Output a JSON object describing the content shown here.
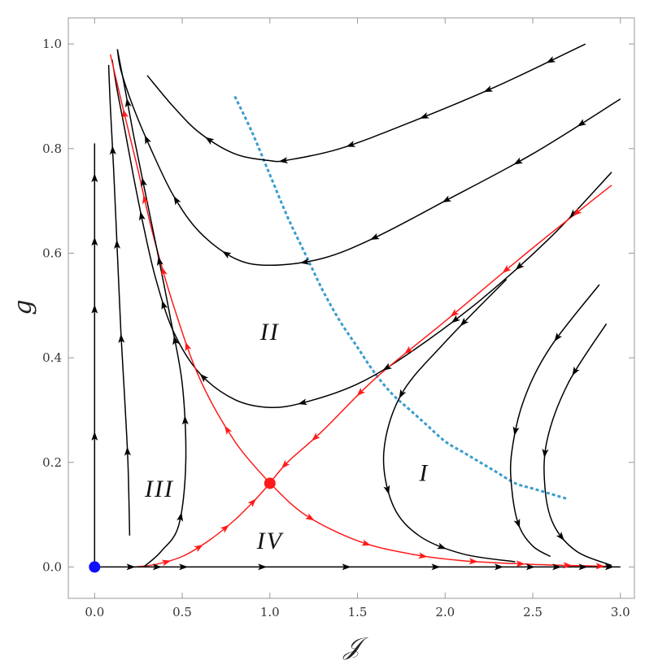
{
  "chart_data": {
    "type": "phase-portrait",
    "xlabel": "𝒥",
    "ylabel": "g",
    "xlim": [
      -0.15,
      3.08
    ],
    "ylim": [
      -0.06,
      1.05
    ],
    "x_ticks": [
      "0.0",
      "0.5",
      "1.0",
      "1.5",
      "2.0",
      "2.5",
      "3.0"
    ],
    "x_tick_values": [
      0,
      0.5,
      1,
      1.5,
      2,
      2.5,
      3
    ],
    "y_ticks": [
      "0.0",
      "0.2",
      "0.4",
      "0.6",
      "0.8",
      "1.0"
    ],
    "y_tick_values": [
      0,
      0.2,
      0.4,
      0.6,
      0.8,
      1.0
    ],
    "colors": {
      "flow": "#000000",
      "separatrix": "#ff1a1a",
      "boundary": "#3b9ccc",
      "fixed_point_stable": "#ff1a1a",
      "fixed_point_origin": "#1010ff"
    },
    "fixed_points": [
      {
        "id": "origin",
        "x": 0,
        "y": 0,
        "color": "#1010ff"
      },
      {
        "id": "saddle",
        "x": 1.0,
        "y": 0.16,
        "color": "#ff1a1a"
      }
    ],
    "region_labels": [
      {
        "text": "I",
        "x": 1.88,
        "y": 0.18
      },
      {
        "text": "II",
        "x": 1.0,
        "y": 0.45
      },
      {
        "text": "III",
        "x": 0.37,
        "y": 0.15
      },
      {
        "text": "IV",
        "x": 1.0,
        "y": 0.05
      }
    ],
    "boundary_curve": {
      "style": "dashed",
      "points": [
        [
          0.8,
          0.9
        ],
        [
          0.9,
          0.83
        ],
        [
          1.0,
          0.75
        ],
        [
          1.1,
          0.67
        ],
        [
          1.2,
          0.6
        ],
        [
          1.3,
          0.53
        ],
        [
          1.4,
          0.47
        ],
        [
          1.5,
          0.42
        ],
        [
          1.6,
          0.37
        ],
        [
          1.7,
          0.33
        ],
        [
          1.8,
          0.3
        ],
        [
          1.9,
          0.27
        ],
        [
          2.0,
          0.24
        ],
        [
          2.1,
          0.22
        ],
        [
          2.2,
          0.2
        ],
        [
          2.3,
          0.18
        ],
        [
          2.4,
          0.16
        ],
        [
          2.5,
          0.15
        ],
        [
          2.6,
          0.14
        ],
        [
          2.7,
          0.13
        ]
      ]
    },
    "series": [
      {
        "color": "#000000",
        "points": [
          [
            2.8,
            1.0
          ],
          [
            2.3,
            0.92
          ],
          [
            1.8,
            0.85
          ],
          [
            1.4,
            0.8
          ],
          [
            1.1,
            0.778
          ],
          [
            1.0,
            0.777
          ],
          [
            0.8,
            0.79
          ],
          [
            0.6,
            0.83
          ],
          [
            0.45,
            0.88
          ],
          [
            0.3,
            0.94
          ]
        ],
        "arrows": [
          0.08,
          0.22,
          0.36,
          0.52,
          0.66,
          0.82
        ]
      },
      {
        "color": "#000000",
        "points": [
          [
            3.0,
            0.895
          ],
          [
            2.5,
            0.79
          ],
          [
            2.0,
            0.7
          ],
          [
            1.6,
            0.63
          ],
          [
            1.3,
            0.59
          ],
          [
            1.0,
            0.577
          ],
          [
            0.8,
            0.59
          ],
          [
            0.6,
            0.64
          ],
          [
            0.45,
            0.71
          ],
          [
            0.32,
            0.8
          ],
          [
            0.22,
            0.88
          ],
          [
            0.15,
            0.95
          ],
          [
            0.13,
            0.99
          ]
        ],
        "arrows": [
          0.07,
          0.18,
          0.3,
          0.42,
          0.53,
          0.65,
          0.76,
          0.86
        ]
      },
      {
        "color": "#000000",
        "points": [
          [
            2.95,
            0.755
          ],
          [
            2.6,
            0.63
          ],
          [
            2.2,
            0.51
          ],
          [
            1.8,
            0.41
          ],
          [
            1.5,
            0.35
          ],
          [
            1.2,
            0.315
          ],
          [
            1.0,
            0.305
          ],
          [
            0.8,
            0.32
          ],
          [
            0.6,
            0.37
          ],
          [
            0.45,
            0.45
          ],
          [
            0.35,
            0.55
          ],
          [
            0.28,
            0.65
          ],
          [
            0.22,
            0.75
          ],
          [
            0.17,
            0.84
          ],
          [
            0.13,
            0.91
          ],
          [
            0.1,
            0.97
          ]
        ],
        "arrows": [
          0.07,
          0.16,
          0.26,
          0.36,
          0.47,
          0.6,
          0.7,
          0.81
        ]
      },
      {
        "color": "#ff1a1a",
        "points": [
          [
            2.95,
            0.73
          ],
          [
            2.5,
            0.61
          ],
          [
            2.0,
            0.47
          ],
          [
            1.6,
            0.36
          ],
          [
            1.3,
            0.26
          ],
          [
            1.1,
            0.2
          ],
          [
            1.0,
            0.16
          ]
        ],
        "arrows": [
          0.1,
          0.3,
          0.45,
          0.58,
          0.72,
          0.86,
          0.95
        ]
      },
      {
        "color": "#ff1a1a",
        "points": [
          [
            0.23,
            0.0
          ],
          [
            0.35,
            0.005
          ],
          [
            0.5,
            0.02
          ],
          [
            0.65,
            0.05
          ],
          [
            0.8,
            0.09
          ],
          [
            0.92,
            0.13
          ],
          [
            1.0,
            0.16
          ]
        ],
        "arrows": [
          0.2,
          0.42,
          0.62,
          0.85
        ]
      },
      {
        "color": "#ff1a1a",
        "points": [
          [
            1.0,
            0.16
          ],
          [
            0.8,
            0.24
          ],
          [
            0.6,
            0.36
          ],
          [
            0.45,
            0.5
          ],
          [
            0.33,
            0.64
          ],
          [
            0.24,
            0.77
          ],
          [
            0.16,
            0.88
          ],
          [
            0.09,
            0.98
          ]
        ],
        "arrows": [
          0.15,
          0.35,
          0.52,
          0.68,
          0.87
        ]
      },
      {
        "color": "#ff1a1a",
        "points": [
          [
            1.0,
            0.16
          ],
          [
            1.2,
            0.1
          ],
          [
            1.5,
            0.05
          ],
          [
            1.8,
            0.025
          ],
          [
            2.1,
            0.012
          ],
          [
            2.5,
            0.005
          ],
          [
            2.95,
            0.001
          ]
        ],
        "arrows": [
          0.15,
          0.32,
          0.48,
          0.62,
          0.75,
          0.88,
          0.97
        ]
      },
      {
        "color": "#000000",
        "points": [
          [
            0.0,
            0.0
          ],
          [
            0.0,
            0.81
          ]
        ],
        "arrows": [
          0.31,
          0.61,
          0.77,
          0.92
        ]
      },
      {
        "color": "#000000",
        "points": [
          [
            0.0,
            0.0
          ],
          [
            0.5,
            0.0
          ],
          [
            1.0,
            0.0
          ],
          [
            1.5,
            0.0
          ],
          [
            2.0,
            0.0
          ],
          [
            2.5,
            0.0
          ],
          [
            3.0,
            0.0
          ]
        ],
        "arrows": [
          0.07,
          0.12,
          0.17,
          0.32,
          0.48,
          0.65,
          0.77,
          0.83,
          0.88,
          0.93,
          0.98
        ]
      },
      {
        "color": "#000000",
        "points": [
          [
            0.2,
            0.06
          ],
          [
            0.19,
            0.2
          ],
          [
            0.17,
            0.33
          ],
          [
            0.15,
            0.45
          ],
          [
            0.13,
            0.6
          ],
          [
            0.11,
            0.75
          ],
          [
            0.09,
            0.88
          ],
          [
            0.08,
            0.96
          ]
        ],
        "arrows": [
          0.18,
          0.42,
          0.62,
          0.82
        ]
      },
      {
        "color": "#000000",
        "points": [
          [
            0.28,
            0.0
          ],
          [
            0.38,
            0.03
          ],
          [
            0.48,
            0.08
          ],
          [
            0.52,
            0.2
          ],
          [
            0.5,
            0.35
          ],
          [
            0.43,
            0.48
          ],
          [
            0.36,
            0.6
          ],
          [
            0.28,
            0.73
          ],
          [
            0.22,
            0.83
          ],
          [
            0.17,
            0.92
          ],
          [
            0.13,
            0.99
          ]
        ],
        "arrows": [
          0.12,
          0.3,
          0.45,
          0.6,
          0.75,
          0.9
        ]
      },
      {
        "color": "#000000",
        "points": [
          [
            2.35,
            0.55
          ],
          [
            2.0,
            0.43
          ],
          [
            1.75,
            0.33
          ],
          [
            1.65,
            0.22
          ],
          [
            1.7,
            0.12
          ],
          [
            1.85,
            0.06
          ],
          [
            2.1,
            0.025
          ],
          [
            2.4,
            0.01
          ]
        ],
        "arrows": [
          0.15,
          0.38,
          0.62,
          0.82
        ]
      },
      {
        "color": "#000000",
        "points": [
          [
            2.88,
            0.54
          ],
          [
            2.6,
            0.42
          ],
          [
            2.45,
            0.32
          ],
          [
            2.38,
            0.22
          ],
          [
            2.38,
            0.15
          ],
          [
            2.42,
            0.08
          ],
          [
            2.5,
            0.04
          ],
          [
            2.6,
            0.02
          ]
        ],
        "arrows": [
          0.22,
          0.55,
          0.85
        ]
      },
      {
        "color": "#000000",
        "points": [
          [
            2.92,
            0.465
          ],
          [
            2.7,
            0.35
          ],
          [
            2.58,
            0.24
          ],
          [
            2.57,
            0.15
          ],
          [
            2.62,
            0.08
          ],
          [
            2.75,
            0.03
          ],
          [
            2.95,
            0.003
          ]
        ],
        "arrows": [
          0.2,
          0.5,
          0.8
        ]
      }
    ]
  }
}
